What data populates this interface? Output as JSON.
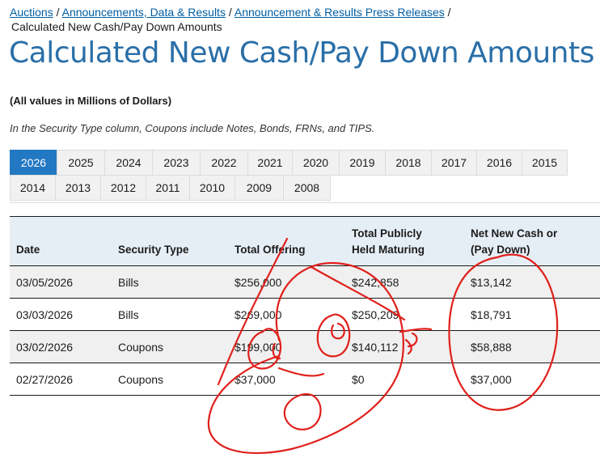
{
  "breadcrumb": {
    "links": [
      "Auctions",
      "Announcements, Data & Results",
      "Announcement & Results Press Releases"
    ],
    "separator": "/",
    "current": "Calculated New Cash/Pay Down Amounts"
  },
  "page": {
    "title": "Calculated New Cash/Pay Down Amounts",
    "units_note": "(All values in Millions of Dollars)",
    "coupon_note": "In the Security Type column, Coupons include Notes, Bonds, FRNs, and TIPS."
  },
  "tabs": {
    "row1": [
      "2026",
      "2025",
      "2024",
      "2023",
      "2022",
      "2021",
      "2020",
      "2019",
      "2018",
      "2017",
      "2016",
      "2015"
    ],
    "row2": [
      "2014",
      "2013",
      "2012",
      "2011",
      "2010",
      "2009",
      "2008"
    ],
    "active": "2026"
  },
  "table": {
    "headers": {
      "date": "Date",
      "security_type": "Security Type",
      "total_offering": "Total Offering",
      "held_maturing_1": "Total Publicly",
      "held_maturing_2": "Held Maturing",
      "net_new_cash_1": "Net New Cash or",
      "net_new_cash_2": "(Pay Down)"
    },
    "rows": [
      {
        "date": "03/05/2026",
        "security_type": "Bills",
        "total_offering": "$256,000",
        "held_maturing": "$242,858",
        "net_new_cash": "$13,142"
      },
      {
        "date": "03/03/2026",
        "security_type": "Bills",
        "total_offering": "$269,000",
        "held_maturing": "$250,209",
        "net_new_cash": "$18,791"
      },
      {
        "date": "03/02/2026",
        "security_type": "Coupons",
        "total_offering": "$199,000",
        "held_maturing": "$140,112",
        "net_new_cash": "$58,888"
      },
      {
        "date": "02/27/2026",
        "security_type": "Coupons",
        "total_offering": "$37,000",
        "held_maturing": "$0",
        "net_new_cash": "$37,000"
      }
    ]
  },
  "colors": {
    "link": "#005ea2",
    "title": "#2a6fa8",
    "active_tab": "#2378c3",
    "header_bg": "#e6eef5",
    "annotation": "#e0201b"
  }
}
